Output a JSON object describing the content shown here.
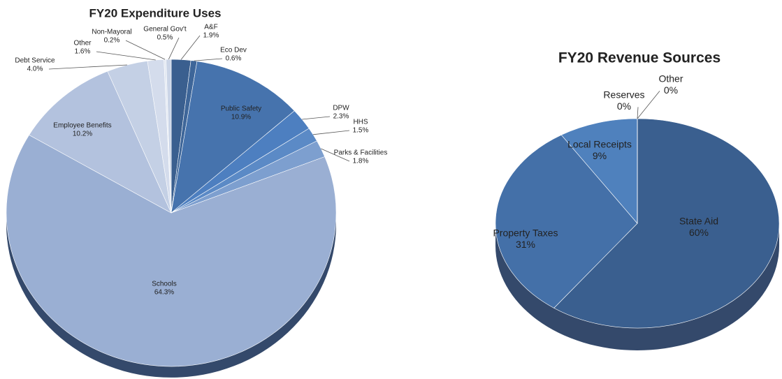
{
  "chart_data": [
    {
      "type": "pie",
      "title": "FY20 Expenditure Uses",
      "categories": [
        "A&F",
        "Eco Dev",
        "Public Safety",
        "DPW",
        "HHS",
        "Parks & Facilities",
        "Schools",
        "Employee Benefits",
        "Debt Service",
        "Other",
        "Non-Mayoral",
        "General Gov't"
      ],
      "values": [
        1.9,
        0.6,
        10.9,
        2.3,
        1.5,
        1.8,
        64.3,
        10.2,
        4.0,
        1.6,
        0.2,
        0.5
      ],
      "value_labels": [
        "1.9%",
        "0.6%",
        "10.9%",
        "2.3%",
        "1.5%",
        "1.8%",
        "64.3%",
        "10.2%",
        "4.0%",
        "1.6%",
        "0.2%",
        "0.5%"
      ],
      "colors": [
        "#3a5f8f",
        "#3e6699",
        "#4673ad",
        "#4d7fc0",
        "#5b8ac6",
        "#7d9fcf",
        "#9aafd3",
        "#b3c2de",
        "#c4d0e5",
        "#d4dcec",
        "#e2e8f2",
        "#cbd5e7"
      ]
    },
    {
      "type": "pie",
      "title": "FY20 Revenue Sources",
      "categories": [
        "State Aid",
        "Property Taxes",
        "Local Receipts",
        "Reserves",
        "Other"
      ],
      "values": [
        60,
        31,
        9,
        0,
        0
      ],
      "value_labels": [
        "60%",
        "31%",
        "9%",
        "0%",
        "0%"
      ],
      "colors": [
        "#3a5f8f",
        "#4470a8",
        "#4f81bd",
        "#b8c8e0",
        "#dde5f0"
      ]
    }
  ]
}
